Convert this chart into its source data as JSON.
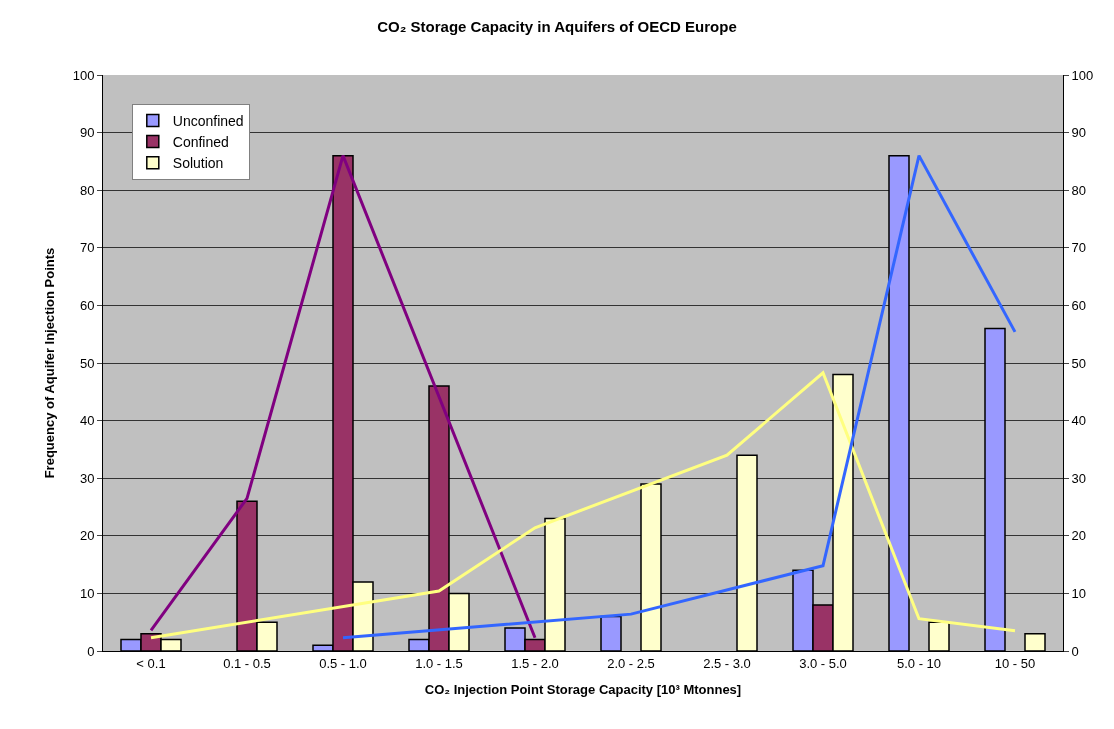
{
  "chart_data": {
    "type": "bar",
    "title": "CO₂ Storage Capacity in Aquifers of OECD Europe",
    "xlabel": "CO₂ Injection Point Storage Capacity [10³ Mtonnes]",
    "ylabel": "Frequency of Aquifer Injection Points",
    "categories": [
      "< 0.1",
      "0.1 - 0.5",
      "0.5 - 1.0",
      "1.0 - 1.5",
      "1.5 - 2.0",
      "2.0 - 2.5",
      "2.5 - 3.0",
      "3.0 - 5.0",
      "5.0 - 10",
      "10 - 50"
    ],
    "series": [
      {
        "name": "Unconfined",
        "color": "#9999ff",
        "values": [
          2,
          null,
          1,
          2,
          4,
          6,
          null,
          14,
          86,
          56
        ]
      },
      {
        "name": "Confined",
        "color": "#993366",
        "values": [
          3,
          26,
          86,
          46,
          2,
          null,
          null,
          8,
          null,
          null
        ]
      },
      {
        "name": "Solution",
        "color": "#ffffcc",
        "values": [
          2,
          5,
          12,
          10,
          23,
          29,
          34,
          48,
          5,
          3
        ]
      },
      {
        "type": "line",
        "color": "#800080",
        "values": [
          3.6,
          26.5,
          86,
          null,
          2.3,
          null,
          null,
          null,
          null,
          null
        ]
      },
      {
        "type": "line",
        "color": "#ffff80",
        "values": [
          2.3,
          null,
          null,
          10.4,
          21.4,
          null,
          34,
          48.3,
          5.6,
          3.5
        ]
      },
      {
        "type": "line",
        "color": "#3366ff",
        "values": [
          null,
          null,
          2.3,
          null,
          null,
          6.4,
          null,
          14.8,
          86,
          55.4
        ]
      }
    ],
    "ylim": [
      0,
      100
    ],
    "yticks": [
      0,
      10,
      20,
      30,
      40,
      50,
      60,
      70,
      80,
      90,
      100
    ],
    "y2lim": [
      0,
      100
    ],
    "y2ticks": [
      0,
      10,
      20,
      30,
      40,
      50,
      60,
      70,
      80,
      90,
      100
    ],
    "grid": "y",
    "legend": "top left",
    "marker": "none",
    "line_style": "solid"
  }
}
